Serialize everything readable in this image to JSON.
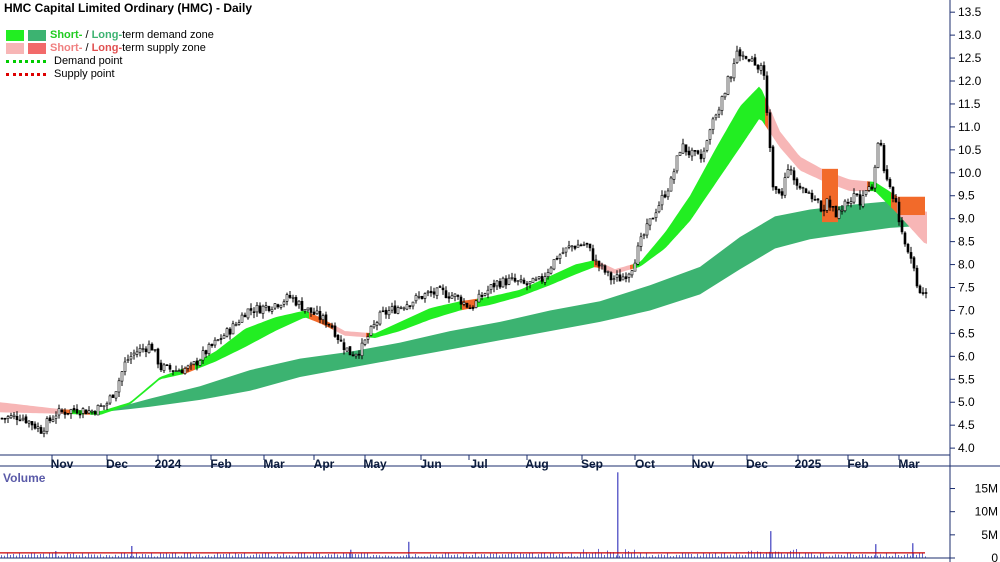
{
  "title": "HMC Capital Limited Ordinary (HMC) - Daily",
  "legend": {
    "demand_short": "Short-",
    "demand_sep": " / ",
    "demand_long": "Long-",
    "demand_rest": "term demand zone",
    "supply_short": "Short-",
    "supply_sep": " / ",
    "supply_long": "Long-",
    "supply_rest": "term supply zone",
    "demand_point": "Demand point",
    "supply_point": "Supply point"
  },
  "volume_label": "Volume",
  "colors": {
    "short_demand": "#22ee22",
    "long_demand": "#3cb371",
    "short_supply": "#f7b6b6",
    "long_supply": "#f26a2a",
    "demand_point": "#00cc00",
    "supply_point": "#dd0000",
    "axis_line": "#1b2d6e",
    "volume_bar": "#6666cc",
    "volume_avg": "#cc0000"
  },
  "chart_data": {
    "type": "candlestick",
    "price_axis": {
      "ticks": [
        "13.5",
        "13.0",
        "12.5",
        "12.0",
        "11.5",
        "11.0",
        "10.5",
        "10.0",
        "9.5",
        "9.0",
        "8.5",
        "8.0",
        "7.5",
        "7.0",
        "6.5",
        "6.0",
        "5.5",
        "5.0",
        "4.5",
        "4.0"
      ],
      "ylim": [
        3.85,
        13.7
      ]
    },
    "volume_axis": {
      "ticks": [
        "15M",
        "10M",
        "5M",
        "0"
      ],
      "ylim": [
        0,
        19
      ]
    },
    "months": [
      "Nov",
      "Dec",
      "2024",
      "Feb",
      "Mar",
      "Apr",
      "May",
      "Jun",
      "Jul",
      "Aug",
      "Sep",
      "Oct",
      "Nov",
      "Dec",
      "2025",
      "Feb",
      "Mar"
    ],
    "price_path": [
      [
        0,
        4.65
      ],
      [
        20,
        4.7
      ],
      [
        40,
        4.4
      ],
      [
        55,
        4.75
      ],
      [
        75,
        4.85
      ],
      [
        90,
        4.8
      ],
      [
        105,
        4.95
      ],
      [
        115,
        5.3
      ],
      [
        125,
        5.9
      ],
      [
        135,
        6.1
      ],
      [
        150,
        6.25
      ],
      [
        160,
        5.75
      ],
      [
        175,
        5.7
      ],
      [
        190,
        5.75
      ],
      [
        205,
        6.1
      ],
      [
        220,
        6.4
      ],
      [
        235,
        6.7
      ],
      [
        245,
        7.0
      ],
      [
        260,
        7.05
      ],
      [
        275,
        7.15
      ],
      [
        290,
        7.3
      ],
      [
        300,
        7.1
      ],
      [
        315,
        6.9
      ],
      [
        330,
        6.7
      ],
      [
        340,
        6.3
      ],
      [
        350,
        6.05
      ],
      [
        360,
        6.15
      ],
      [
        370,
        6.55
      ],
      [
        380,
        6.9
      ],
      [
        395,
        7.05
      ],
      [
        410,
        7.2
      ],
      [
        425,
        7.35
      ],
      [
        440,
        7.4
      ],
      [
        455,
        7.3
      ],
      [
        470,
        7.05
      ],
      [
        480,
        7.3
      ],
      [
        495,
        7.6
      ],
      [
        510,
        7.65
      ],
      [
        525,
        7.55
      ],
      [
        540,
        7.65
      ],
      [
        555,
        8.15
      ],
      [
        570,
        8.4
      ],
      [
        585,
        8.45
      ],
      [
        595,
        8.05
      ],
      [
        610,
        7.7
      ],
      [
        620,
        7.7
      ],
      [
        630,
        7.9
      ],
      [
        640,
        8.5
      ],
      [
        655,
        9.2
      ],
      [
        670,
        9.8
      ],
      [
        680,
        10.6
      ],
      [
        690,
        10.4
      ],
      [
        700,
        10.3
      ],
      [
        710,
        11.0
      ],
      [
        720,
        11.7
      ],
      [
        730,
        12.2
      ],
      [
        737,
        12.6
      ],
      [
        742,
        12.55
      ],
      [
        750,
        12.4
      ],
      [
        760,
        12.25
      ],
      [
        764,
        11.9
      ],
      [
        768,
        10.8
      ],
      [
        772,
        9.7
      ],
      [
        780,
        9.6
      ],
      [
        790,
        10.1
      ],
      [
        800,
        9.7
      ],
      [
        808,
        9.55
      ],
      [
        815,
        9.45
      ],
      [
        822,
        9.3
      ],
      [
        830,
        9.25
      ],
      [
        838,
        9.15
      ],
      [
        846,
        9.4
      ],
      [
        855,
        9.5
      ],
      [
        865,
        9.55
      ],
      [
        872,
        9.9
      ],
      [
        878,
        10.9
      ],
      [
        884,
        9.9
      ],
      [
        890,
        9.6
      ],
      [
        896,
        9.35
      ],
      [
        902,
        8.6
      ],
      [
        908,
        8.3
      ],
      [
        913,
        7.9
      ],
      [
        918,
        7.45
      ],
      [
        925,
        7.35
      ]
    ],
    "short_band_top": [
      [
        0,
        5.0
      ],
      [
        60,
        4.85
      ],
      [
        100,
        4.8
      ],
      [
        130,
        5.0
      ],
      [
        160,
        5.55
      ],
      [
        185,
        5.75
      ],
      [
        215,
        6.1
      ],
      [
        245,
        6.6
      ],
      [
        275,
        6.85
      ],
      [
        305,
        7.0
      ],
      [
        320,
        6.85
      ],
      [
        345,
        6.55
      ],
      [
        375,
        6.5
      ],
      [
        400,
        6.75
      ],
      [
        430,
        7.05
      ],
      [
        460,
        7.2
      ],
      [
        490,
        7.3
      ],
      [
        520,
        7.45
      ],
      [
        550,
        7.75
      ],
      [
        575,
        8.0
      ],
      [
        595,
        8.1
      ],
      [
        615,
        7.9
      ],
      [
        640,
        8.05
      ],
      [
        665,
        8.7
      ],
      [
        690,
        9.5
      ],
      [
        715,
        10.5
      ],
      [
        740,
        11.45
      ],
      [
        760,
        11.9
      ],
      [
        780,
        10.9
      ],
      [
        800,
        10.35
      ],
      [
        825,
        10.05
      ],
      [
        850,
        9.85
      ],
      [
        875,
        9.8
      ],
      [
        900,
        9.45
      ],
      [
        925,
        9.15
      ]
    ],
    "short_band_bottom": [
      [
        0,
        4.78
      ],
      [
        60,
        4.75
      ],
      [
        100,
        4.72
      ],
      [
        130,
        4.95
      ],
      [
        160,
        5.5
      ],
      [
        185,
        5.62
      ],
      [
        215,
        5.88
      ],
      [
        245,
        6.2
      ],
      [
        275,
        6.55
      ],
      [
        305,
        6.85
      ],
      [
        320,
        6.72
      ],
      [
        345,
        6.45
      ],
      [
        375,
        6.4
      ],
      [
        400,
        6.55
      ],
      [
        430,
        6.8
      ],
      [
        460,
        7.0
      ],
      [
        490,
        7.12
      ],
      [
        520,
        7.3
      ],
      [
        550,
        7.55
      ],
      [
        575,
        7.78
      ],
      [
        595,
        7.95
      ],
      [
        615,
        7.8
      ],
      [
        640,
        7.95
      ],
      [
        665,
        8.35
      ],
      [
        690,
        8.95
      ],
      [
        715,
        9.75
      ],
      [
        740,
        10.55
      ],
      [
        760,
        11.2
      ],
      [
        780,
        10.55
      ],
      [
        800,
        10.05
      ],
      [
        825,
        9.8
      ],
      [
        850,
        9.6
      ],
      [
        875,
        9.6
      ],
      [
        900,
        9.05
      ],
      [
        925,
        8.45
      ]
    ],
    "long_band_top": [
      [
        100,
        4.78
      ],
      [
        150,
        5.08
      ],
      [
        200,
        5.35
      ],
      [
        250,
        5.7
      ],
      [
        300,
        5.95
      ],
      [
        350,
        6.1
      ],
      [
        400,
        6.3
      ],
      [
        450,
        6.55
      ],
      [
        500,
        6.75
      ],
      [
        550,
        7.0
      ],
      [
        600,
        7.2
      ],
      [
        650,
        7.55
      ],
      [
        700,
        7.95
      ],
      [
        740,
        8.6
      ],
      [
        775,
        9.05
      ],
      [
        810,
        9.2
      ],
      [
        850,
        9.3
      ],
      [
        890,
        9.38
      ],
      [
        925,
        9.4
      ]
    ],
    "long_band_bottom": [
      [
        100,
        4.78
      ],
      [
        150,
        4.9
      ],
      [
        200,
        5.05
      ],
      [
        250,
        5.25
      ],
      [
        300,
        5.55
      ],
      [
        350,
        5.75
      ],
      [
        400,
        5.95
      ],
      [
        450,
        6.15
      ],
      [
        500,
        6.35
      ],
      [
        550,
        6.55
      ],
      [
        600,
        6.75
      ],
      [
        650,
        7.0
      ],
      [
        700,
        7.35
      ],
      [
        740,
        7.9
      ],
      [
        775,
        8.35
      ],
      [
        810,
        8.55
      ],
      [
        850,
        8.68
      ],
      [
        890,
        8.8
      ],
      [
        925,
        8.85
      ]
    ],
    "volume_spikes": [
      [
        617,
        18.5
      ],
      [
        770,
        5.8
      ],
      [
        408,
        3.5
      ],
      [
        912,
        3.2
      ],
      [
        875,
        3.0
      ],
      [
        131,
        2.6
      ],
      [
        55,
        1.5
      ],
      [
        350,
        1.8
      ]
    ],
    "volume_baseline_avg": 1.1
  }
}
